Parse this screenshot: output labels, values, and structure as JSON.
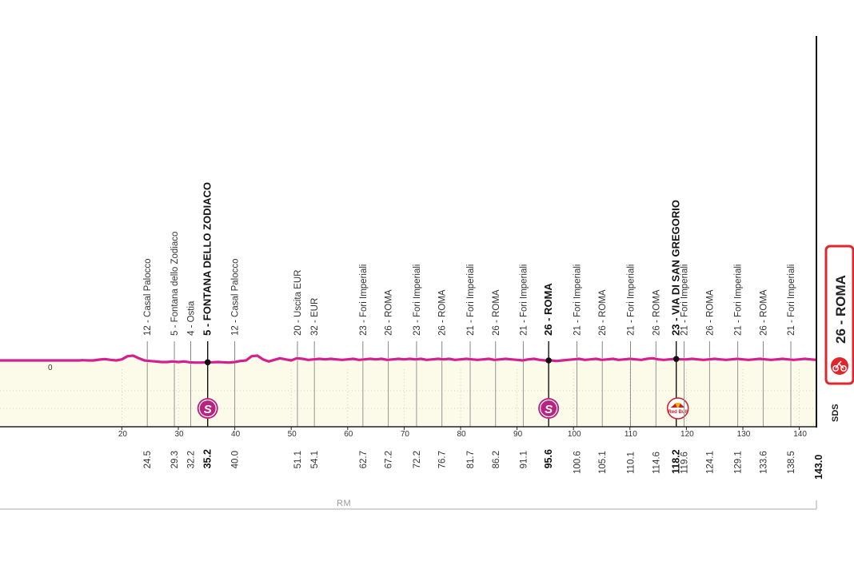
{
  "stage_profile": {
    "total_km": 143.0,
    "start_altitude_label": "0",
    "region_code": "RM",
    "brand_mark": "SDS",
    "finish": {
      "label": "26 - ROMA",
      "km_label": "143.0",
      "km": 143.0
    },
    "axis_ticks": [
      20,
      30,
      40,
      50,
      60,
      70,
      80,
      90,
      100,
      110,
      120,
      130,
      140
    ],
    "waypoints": [
      {
        "km": 24.5,
        "km_label": "24.5",
        "label": "12 - Casal Palocco",
        "bold": false
      },
      {
        "km": 29.3,
        "km_label": "29.3",
        "label": "5 - Fontana dello Zodiaco",
        "bold": false
      },
      {
        "km": 32.2,
        "km_label": "32.2",
        "label": "4 - Ostia",
        "bold": false
      },
      {
        "km": 35.2,
        "km_label": "35.2",
        "label": "5 - FONTANA DELLO ZODIACO",
        "bold": true,
        "marker": "sprint"
      },
      {
        "km": 40.0,
        "km_label": "40.0",
        "label": "12 - Casal Palocco",
        "bold": false
      },
      {
        "km": 51.1,
        "km_label": "51.1",
        "label": "20 - Uscita EUR",
        "bold": false
      },
      {
        "km": 54.1,
        "km_label": "54.1",
        "label": "32 - EUR",
        "bold": false
      },
      {
        "km": 62.7,
        "km_label": "62.7",
        "label": "23 - Fori Imperiali",
        "bold": false
      },
      {
        "km": 67.2,
        "km_label": "67.2",
        "label": "26 - ROMA",
        "bold": false
      },
      {
        "km": 72.2,
        "km_label": "72.2",
        "label": "23 - Fori Imperiali",
        "bold": false
      },
      {
        "km": 76.7,
        "km_label": "76.7",
        "label": "26 - ROMA",
        "bold": false
      },
      {
        "km": 81.7,
        "km_label": "81.7",
        "label": "21 - Fori Imperiali",
        "bold": false
      },
      {
        "km": 86.2,
        "km_label": "86.2",
        "label": "26 - ROMA",
        "bold": false
      },
      {
        "km": 91.1,
        "km_label": "91.1",
        "label": "21 - Fori Imperiali",
        "bold": false
      },
      {
        "km": 95.6,
        "km_label": "95.6",
        "label": "26 - ROMA",
        "bold": true,
        "marker": "sprint"
      },
      {
        "km": 100.6,
        "km_label": "100.6",
        "label": "21 - Fori Imperiali",
        "bold": false
      },
      {
        "km": 105.1,
        "km_label": "105.1",
        "label": "26 - ROMA",
        "bold": false
      },
      {
        "km": 110.1,
        "km_label": "110.1",
        "label": "21 - Fori Imperiali",
        "bold": false
      },
      {
        "km": 114.6,
        "km_label": "114.6",
        "label": "26 - ROMA",
        "bold": false
      },
      {
        "km": 118.2,
        "km_label": "118.2",
        "label": "23 - VIA DI SAN GREGORIO",
        "bold": true,
        "marker": "bonus"
      },
      {
        "km": 119.6,
        "km_label": "119.6",
        "label": "21 - Fori Imperiali",
        "bold": false
      },
      {
        "km": 124.1,
        "km_label": "124.1",
        "label": "26 - ROMA",
        "bold": false
      },
      {
        "km": 129.1,
        "km_label": "129.1",
        "label": "21 - Fori Imperiali",
        "bold": false
      },
      {
        "km": 133.6,
        "km_label": "133.6",
        "label": "26 - ROMA",
        "bold": false
      },
      {
        "km": 138.5,
        "km_label": "138.5",
        "label": "21 - Fori Imperiali",
        "bold": false
      }
    ],
    "markers": {
      "sprint_letter": "S",
      "bonus_text": "Red Bull"
    },
    "elevation_km": [
      12.5,
      13,
      14,
      15,
      16,
      17,
      18,
      19,
      20,
      21,
      22,
      23,
      24,
      25,
      26,
      27,
      28,
      29,
      30,
      31,
      32,
      33,
      34,
      35,
      36,
      37,
      38,
      39,
      40,
      41,
      42,
      43,
      44,
      45,
      46,
      47,
      48,
      49,
      50,
      51,
      52,
      53,
      54,
      55,
      56,
      57,
      58,
      59,
      60,
      61,
      62,
      63,
      64,
      65,
      66,
      67,
      68,
      69,
      70,
      71,
      72,
      73,
      74,
      75,
      76,
      77,
      78,
      79,
      80,
      81,
      82,
      83,
      84,
      85,
      86,
      87,
      88,
      89,
      90,
      91,
      92,
      93,
      94,
      95,
      96,
      97,
      98,
      99,
      100,
      101,
      102,
      103,
      104,
      105,
      106,
      107,
      108,
      109,
      110,
      111,
      112,
      113,
      114,
      115,
      116,
      117,
      118,
      119,
      120,
      121,
      122,
      123,
      124,
      125,
      126,
      127,
      128,
      129,
      130,
      131,
      132,
      133,
      134,
      135,
      136,
      137,
      138,
      139,
      140,
      141,
      142,
      143
    ],
    "elevation_m": [
      12,
      13,
      12,
      12,
      15,
      17,
      14,
      12,
      16,
      28,
      30,
      20,
      12,
      10,
      8,
      6,
      6,
      8,
      6,
      8,
      5,
      4,
      4,
      5,
      5,
      6,
      5,
      4,
      6,
      10,
      12,
      28,
      30,
      16,
      8,
      14,
      20,
      16,
      12,
      20,
      18,
      14,
      16,
      18,
      16,
      18,
      16,
      14,
      16,
      18,
      14,
      16,
      18,
      16,
      18,
      14,
      16,
      18,
      16,
      18,
      16,
      18,
      14,
      16,
      18,
      16,
      18,
      14,
      16,
      18,
      16,
      14,
      16,
      18,
      14,
      16,
      18,
      16,
      14,
      12,
      16,
      18,
      14,
      12,
      12,
      10,
      12,
      14,
      16,
      18,
      14,
      16,
      18,
      14,
      16,
      18,
      14,
      16,
      18,
      16,
      14,
      18,
      20,
      16,
      14,
      16,
      18,
      16,
      16,
      18,
      16,
      14,
      16,
      18,
      16,
      14,
      16,
      18,
      16,
      14,
      16,
      18,
      16,
      14,
      16,
      18,
      16,
      14,
      16,
      18,
      16,
      14,
      16,
      18,
      16,
      16,
      16,
      16,
      16,
      14
    ]
  }
}
